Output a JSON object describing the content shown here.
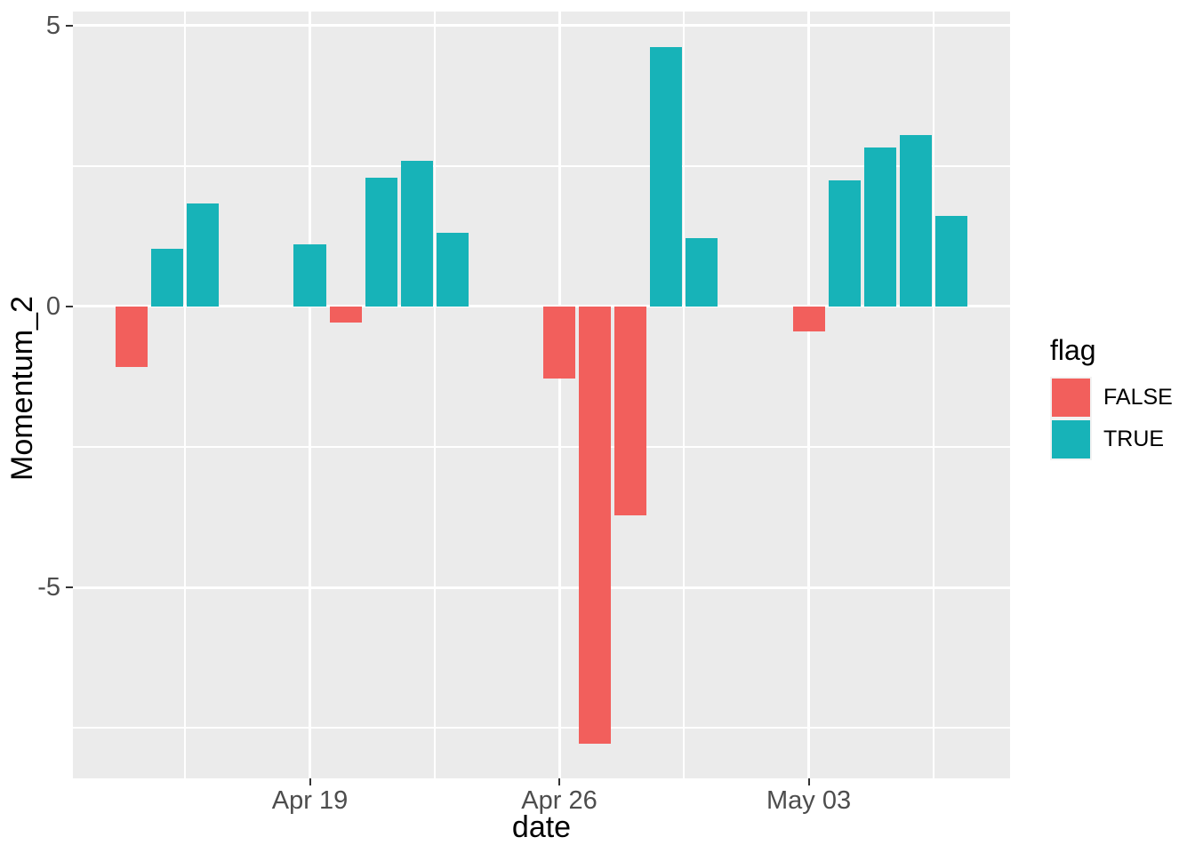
{
  "chart_data": {
    "type": "bar",
    "title": "",
    "xlabel": "date",
    "ylabel": "Momentum_2",
    "grid": "on",
    "legend_position": "right",
    "panel_background": "#EBEBEB",
    "grid_color": "#FFFFFF",
    "axis_text_color": "#4D4D4D",
    "tick_mark_color": "#333333",
    "series_colors": {
      "FALSE": "#F25F5C",
      "TRUE": "#17B3B8"
    },
    "x_domain_days": [
      -6.65,
      19.65
    ],
    "y_domain": [
      -8.4,
      5.25
    ],
    "x_ticks": [
      {
        "label": "Apr 19",
        "day": 0
      },
      {
        "label": "Apr 26",
        "day": 7
      },
      {
        "label": "May 03",
        "day": 14
      }
    ],
    "x_minor_days": [
      -3.5,
      3.5,
      10.5,
      17.5
    ],
    "y_ticks": [
      {
        "label": "5",
        "value": 5
      },
      {
        "label": "0",
        "value": 0
      },
      {
        "label": "-5",
        "value": -5
      }
    ],
    "y_minor": [
      2.5,
      -2.5,
      -7.5
    ],
    "bar_width_days": 0.9,
    "bars": [
      {
        "date": "Apr 14",
        "day": -5,
        "value": -1.07,
        "flag": "FALSE"
      },
      {
        "date": "Apr 15",
        "day": -4,
        "value": 1.02,
        "flag": "TRUE"
      },
      {
        "date": "Apr 16",
        "day": -3,
        "value": 1.84,
        "flag": "TRUE"
      },
      {
        "date": "Apr 19",
        "day": 0,
        "value": 1.11,
        "flag": "TRUE"
      },
      {
        "date": "Apr 20",
        "day": 1,
        "value": -0.28,
        "flag": "FALSE"
      },
      {
        "date": "Apr 21",
        "day": 2,
        "value": 2.29,
        "flag": "TRUE"
      },
      {
        "date": "Apr 22",
        "day": 3,
        "value": 2.59,
        "flag": "TRUE"
      },
      {
        "date": "Apr 23",
        "day": 4,
        "value": 1.31,
        "flag": "TRUE"
      },
      {
        "date": "Apr 26",
        "day": 7,
        "value": -1.28,
        "flag": "FALSE"
      },
      {
        "date": "Apr 27",
        "day": 8,
        "value": -7.78,
        "flag": "FALSE"
      },
      {
        "date": "Apr 28",
        "day": 9,
        "value": -3.72,
        "flag": "FALSE"
      },
      {
        "date": "Apr 29",
        "day": 10,
        "value": 4.62,
        "flag": "TRUE"
      },
      {
        "date": "Apr 30",
        "day": 11,
        "value": 1.22,
        "flag": "TRUE"
      },
      {
        "date": "May 03",
        "day": 14,
        "value": -0.44,
        "flag": "FALSE"
      },
      {
        "date": "May 04",
        "day": 15,
        "value": 2.25,
        "flag": "TRUE"
      },
      {
        "date": "May 05",
        "day": 16,
        "value": 2.83,
        "flag": "TRUE"
      },
      {
        "date": "May 06",
        "day": 17,
        "value": 3.05,
        "flag": "TRUE"
      },
      {
        "date": "May 07",
        "day": 18,
        "value": 1.62,
        "flag": "TRUE"
      }
    ]
  },
  "legend": {
    "title": "flag",
    "items": [
      {
        "label": "FALSE",
        "color": "#F25F5C"
      },
      {
        "label": "TRUE",
        "color": "#17B3B8"
      }
    ]
  }
}
